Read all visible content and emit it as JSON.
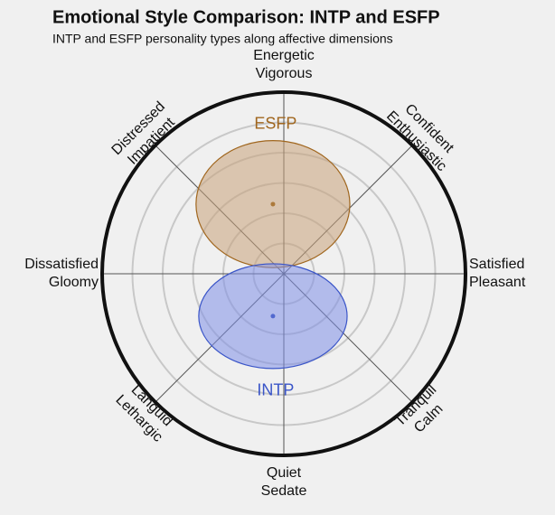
{
  "chart_data": {
    "type": "affect-circle",
    "title": "Emotional Style Comparison: INTP and ESFP",
    "subtitle": "INTP and ESFP personality types along affective dimensions",
    "rlim": 6,
    "rticks": [
      1,
      2,
      3,
      4,
      5
    ],
    "grid": true,
    "dimensions": [
      [
        "Satisfied",
        "Pleasant"
      ],
      [
        "Confident",
        "Enthusiastic"
      ],
      [
        "Energetic",
        "Vigorous"
      ],
      [
        "Distressed",
        "Impatient"
      ],
      [
        "Dissatisfied",
        "Gloomy"
      ],
      [
        "Languid",
        "Lethargic"
      ],
      [
        "Quiet",
        "Sedate"
      ],
      [
        "Tranquil",
        "Calm"
      ]
    ],
    "series": [
      {
        "name": "ESFP",
        "color": "#a0661e",
        "fill": "#c8a27a",
        "x": -0.36,
        "y": 2.3,
        "rx": 2.54,
        "ry": 2.1
      },
      {
        "name": "INTP",
        "color": "#3a55c8",
        "fill": "#8090e8",
        "x": -0.36,
        "y": -1.4,
        "rx": 2.45,
        "ry": 1.73
      }
    ]
  }
}
